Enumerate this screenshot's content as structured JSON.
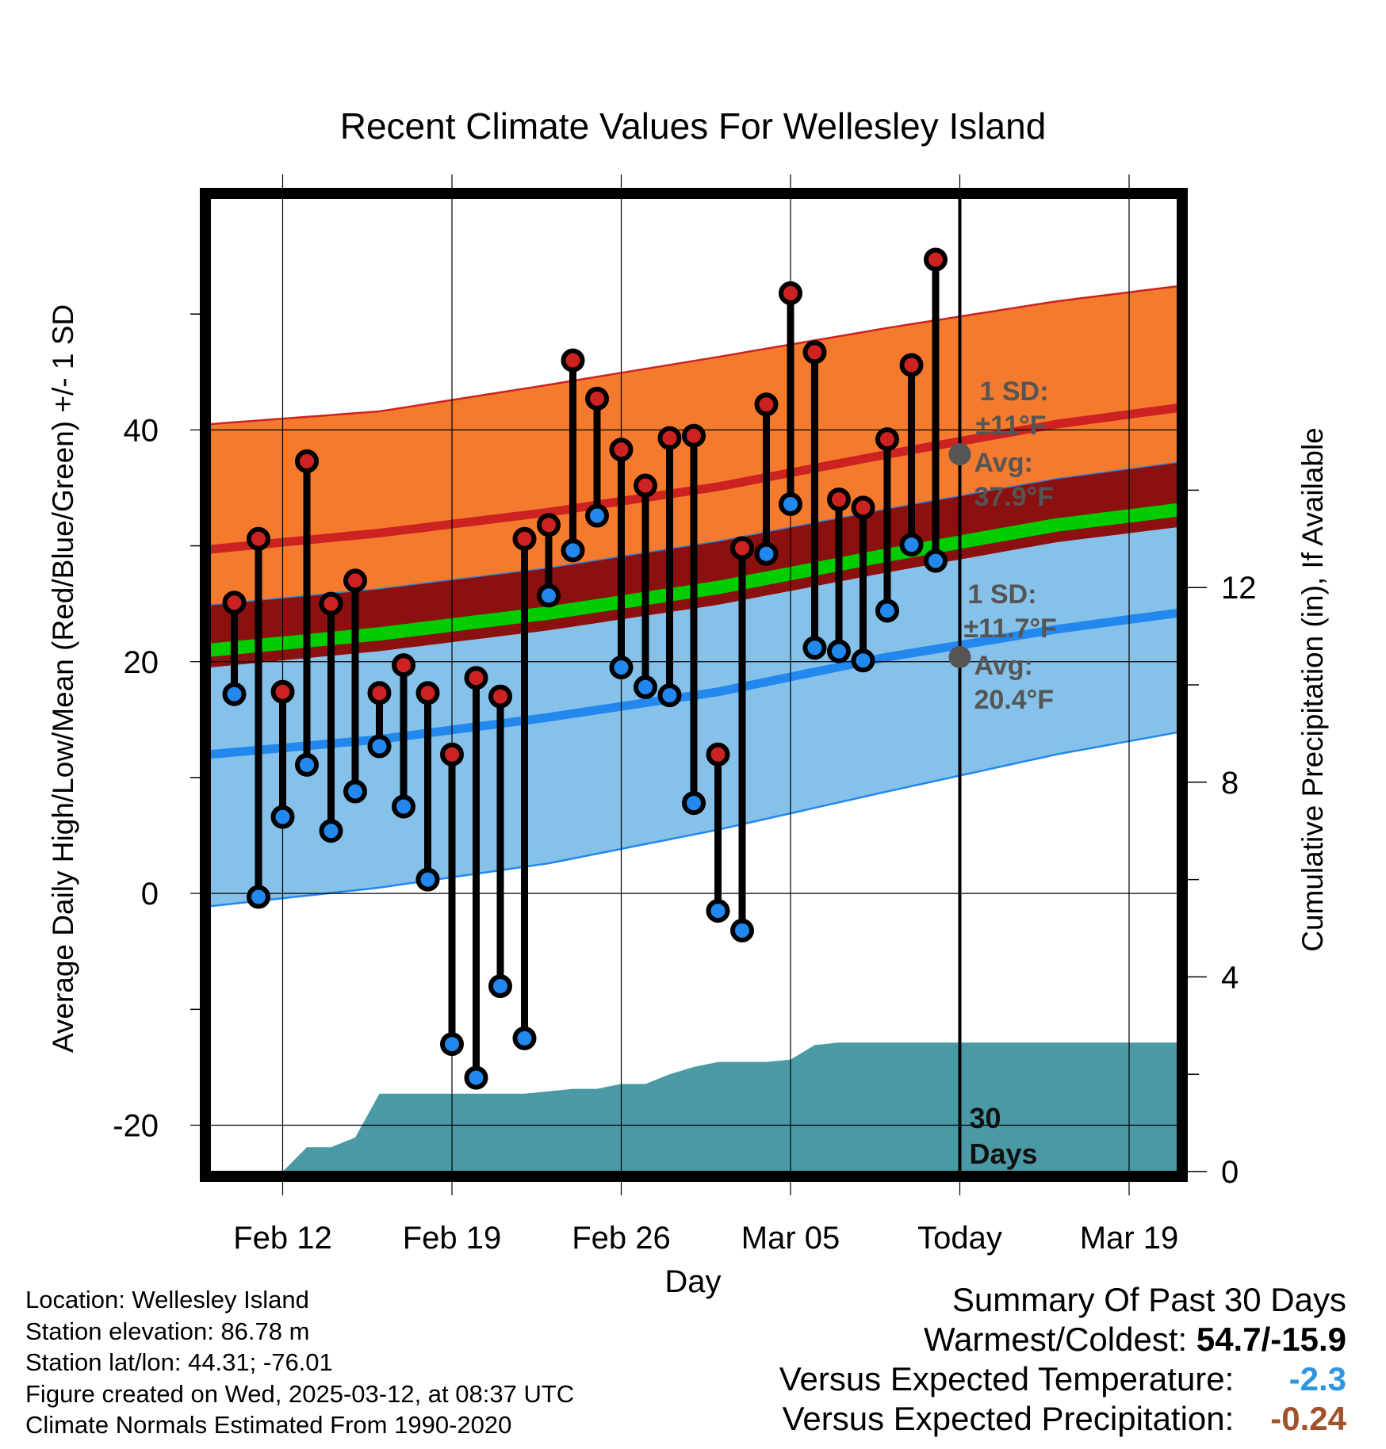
{
  "chart_data": {
    "type": "line",
    "title": "Recent Climate Values For Wellesley Island",
    "xlabel": "Day",
    "ylabel": "Average Daily High/Low/Mean (Red/Blue/Green) +/- 1 SD",
    "y2label": "Cumulative Precipitation (in), If Available",
    "x_range": [
      -26,
      14
    ],
    "ylim": [
      -24,
      60
    ],
    "y2lim": [
      0,
      20
    ],
    "x_ticks": [
      {
        "day": -23,
        "label": "Feb 12"
      },
      {
        "day": -16,
        "label": "Feb 19"
      },
      {
        "day": -9,
        "label": "Feb 26"
      },
      {
        "day": -2,
        "label": "Mar 05"
      },
      {
        "day": 5,
        "label": "Today"
      },
      {
        "day": 12,
        "label": "Mar 19"
      }
    ],
    "y_ticks": [
      "-20",
      "0",
      "20",
      "40"
    ],
    "y_tick_values": [
      -20,
      0,
      20,
      40
    ],
    "y2_ticks": [
      "0",
      "4",
      "8",
      "12"
    ],
    "y2_tick_values": [
      0,
      4,
      8,
      12
    ],
    "grid": true,
    "today_day": 5,
    "normals": {
      "days": [
        -26,
        -19,
        -12,
        -5,
        2,
        9,
        14
      ],
      "high_avg": [
        29.7,
        31.1,
        32.9,
        35.1,
        37.9,
        40.5,
        41.9
      ],
      "high_upper": [
        40.5,
        41.6,
        43.9,
        46.3,
        48.8,
        51.1,
        52.4
      ],
      "low_avg": [
        12.0,
        13.3,
        15.2,
        17.4,
        20.4,
        22.8,
        24.2
      ],
      "low_lower": [
        -1.1,
        0.5,
        2.6,
        5.5,
        8.8,
        12.0,
        13.9
      ],
      "mean_avg": [
        21.0,
        22.4,
        24.2,
        26.4,
        29.2,
        31.8,
        33.1
      ],
      "mean_upper": [
        24.9,
        26.3,
        28.1,
        30.4,
        33.2,
        35.8,
        37.2
      ],
      "mean_lower": [
        19.5,
        20.9,
        22.7,
        24.9,
        27.7,
        30.3,
        31.6
      ]
    },
    "annotations": {
      "high_sd_line1": "1 SD:",
      "high_sd_line2": "±11°F",
      "high_avg_line1": "Avg:",
      "high_avg_line2": "37.9°F",
      "high_avg_value": 37.9,
      "low_sd_line1": "1 SD:",
      "low_sd_line2": "±11.7°F",
      "low_avg_line1": "Avg:",
      "low_avg_line2": "20.4°F",
      "low_avg_value": 20.4,
      "days_line1": "30",
      "days_line2": "Days"
    },
    "series": [
      {
        "name": "High",
        "color": "#cc2222",
        "days": [
          -25,
          -24,
          -23,
          -22,
          -21,
          -20,
          -19,
          -18,
          -17,
          -16,
          -15,
          -14,
          -13,
          -12,
          -11,
          -10,
          -9,
          -8,
          -7,
          -6,
          -5,
          -4,
          -3,
          -2,
          -1,
          0,
          1,
          2,
          3,
          4
        ],
        "values": [
          25.1,
          30.6,
          17.4,
          37.3,
          25.0,
          27.0,
          17.3,
          19.7,
          17.3,
          12.0,
          18.6,
          17.0,
          30.6,
          31.8,
          46.0,
          42.7,
          38.3,
          35.2,
          39.3,
          39.5,
          12.0,
          29.8,
          42.2,
          51.8,
          46.7,
          34.0,
          33.3,
          39.2,
          45.6,
          54.7
        ]
      },
      {
        "name": "Low",
        "color": "#2288ee",
        "days": [
          -25,
          -24,
          -23,
          -22,
          -21,
          -20,
          -19,
          -18,
          -17,
          -16,
          -15,
          -14,
          -13,
          -12,
          -11,
          -10,
          -9,
          -8,
          -7,
          -6,
          -5,
          -4,
          -3,
          -2,
          -1,
          0,
          1,
          2,
          3,
          4
        ],
        "values": [
          17.2,
          -0.3,
          6.6,
          11.1,
          5.4,
          8.8,
          12.7,
          7.5,
          1.2,
          -13.0,
          -15.9,
          -8.0,
          -12.5,
          25.7,
          29.6,
          32.6,
          19.5,
          17.8,
          17.1,
          7.8,
          -1.5,
          -3.2,
          29.3,
          33.6,
          21.2,
          20.9,
          20.1,
          24.4,
          30.1,
          28.7
        ]
      },
      {
        "name": "Cumulative Precipitation",
        "color": "#4a9aa5",
        "unit": "in",
        "days": [
          -26,
          -23,
          -22,
          -21,
          -20,
          -19,
          -18,
          -17,
          -16,
          -15,
          -14,
          -13,
          -12,
          -11,
          -10,
          -9,
          -8,
          -7,
          -6,
          -5,
          -4,
          -3,
          -2,
          -1,
          0,
          1,
          2,
          3,
          4,
          5,
          14
        ],
        "values": [
          0,
          0,
          0.5,
          0.5,
          0.7,
          1.6,
          1.6,
          1.6,
          1.6,
          1.6,
          1.6,
          1.6,
          1.65,
          1.7,
          1.7,
          1.8,
          1.8,
          2.0,
          2.15,
          2.25,
          2.25,
          2.25,
          2.3,
          2.6,
          2.65,
          2.65,
          2.65,
          2.65,
          2.65,
          2.65,
          2.65
        ]
      }
    ]
  },
  "info": {
    "location": "Location: Wellesley Island",
    "elevation": "Station elevation: 86.78 m",
    "latlon": "Station lat/lon: 44.31; -76.01",
    "created": "Figure created on Wed, 2025-03-12, at 08:37 UTC",
    "normals": "Climate Normals Estimated From 1990-2020"
  },
  "summary": {
    "title": "Summary Of Past 30 Days",
    "warm_cold_label": "Warmest/Coldest:",
    "warm_cold_value": "54.7/-15.9",
    "temp_label": "Versus Expected Temperature:",
    "temp_value": "-2.3",
    "temp_color": "#2f95e0",
    "precip_label": "Versus Expected Precipitation:",
    "precip_value": "-0.24",
    "precip_color": "#a0522d"
  },
  "colors": {
    "high_band": "#f47b2e",
    "high_line": "#cc2222",
    "mean_band": "#8b1010",
    "mean_line": "#00cc00",
    "low_band": "#85c1e9",
    "low_line": "#2288ee",
    "precip": "#4a9aa5",
    "annotation": "#555555"
  }
}
